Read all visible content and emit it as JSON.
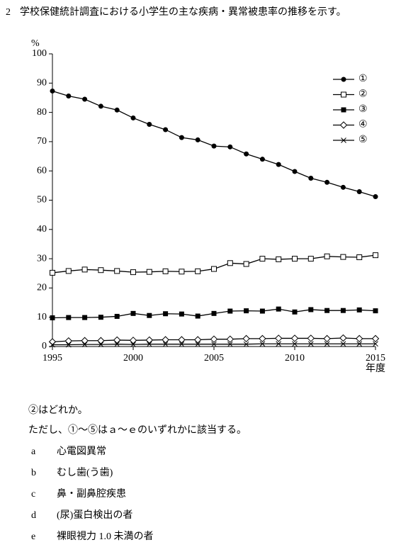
{
  "question": {
    "number": "2",
    "text": "学校保健統計調査における小学生の主な疾病・異常被患率の推移を示す。"
  },
  "chart_data": {
    "type": "line",
    "y_label": "%",
    "x_label": "年度",
    "x": [
      1995,
      1996,
      1997,
      1998,
      1999,
      2000,
      2001,
      2002,
      2003,
      2004,
      2005,
      2006,
      2007,
      2008,
      2009,
      2010,
      2011,
      2012,
      2013,
      2014,
      2015
    ],
    "xlim": [
      1995,
      2015
    ],
    "xticks": [
      1995,
      2000,
      2005,
      2010,
      2015
    ],
    "ylim": [
      0,
      100
    ],
    "yticks": [
      0,
      10,
      20,
      30,
      40,
      50,
      60,
      70,
      80,
      90,
      100
    ],
    "legend": "upper right",
    "series": [
      {
        "name": "①",
        "color": "#000000",
        "marker": "filled-circle",
        "values": [
          87.3,
          85.6,
          84.5,
          82.1,
          80.8,
          78.1,
          75.9,
          74.1,
          71.4,
          70.6,
          68.5,
          68.2,
          65.8,
          64.0,
          62.2,
          59.8,
          57.5,
          56.1,
          54.4,
          52.9,
          51.2
        ]
      },
      {
        "name": "②",
        "color": "#000000",
        "marker": "open-square",
        "values": [
          25.2,
          25.8,
          26.3,
          26.1,
          25.8,
          25.4,
          25.5,
          25.7,
          25.6,
          25.7,
          26.5,
          28.5,
          28.2,
          30.0,
          29.8,
          30.0,
          30.0,
          30.8,
          30.6,
          30.5,
          31.2
        ]
      },
      {
        "name": "③",
        "color": "#000000",
        "marker": "filled-square",
        "values": [
          9.8,
          9.9,
          9.9,
          10.0,
          10.3,
          11.3,
          10.6,
          11.2,
          11.1,
          10.4,
          11.3,
          12.1,
          12.2,
          12.1,
          12.8,
          11.8,
          12.6,
          12.3,
          12.3,
          12.5,
          12.2
        ]
      },
      {
        "name": "④",
        "color": "#000000",
        "marker": "open-diamond",
        "values": [
          1.6,
          1.9,
          2.0,
          2.0,
          2.2,
          2.1,
          2.2,
          2.3,
          2.3,
          2.3,
          2.5,
          2.5,
          2.7,
          2.7,
          2.8,
          2.8,
          2.8,
          2.7,
          2.9,
          2.7,
          2.7
        ]
      },
      {
        "name": "⑤",
        "color": "#000000",
        "marker": "cross",
        "values": [
          0.6,
          0.6,
          0.7,
          0.7,
          0.8,
          0.7,
          0.8,
          0.8,
          0.8,
          0.8,
          0.8,
          0.8,
          0.8,
          0.9,
          0.9,
          0.9,
          0.9,
          0.9,
          0.9,
          0.9,
          0.9
        ]
      }
    ]
  },
  "prompt": "②はどれか。",
  "note": "ただし、①～⑤はａ～ｅのいずれかに該当する。",
  "options": [
    {
      "label": "a",
      "text": "心電図異常"
    },
    {
      "label": "b",
      "text": "むし歯(う歯)"
    },
    {
      "label": "c",
      "text": "鼻・副鼻腔疾患"
    },
    {
      "label": "d",
      "text": "(尿)蛋白検出の者"
    },
    {
      "label": "e",
      "text": "裸眼視力 1.0 未満の者"
    }
  ]
}
